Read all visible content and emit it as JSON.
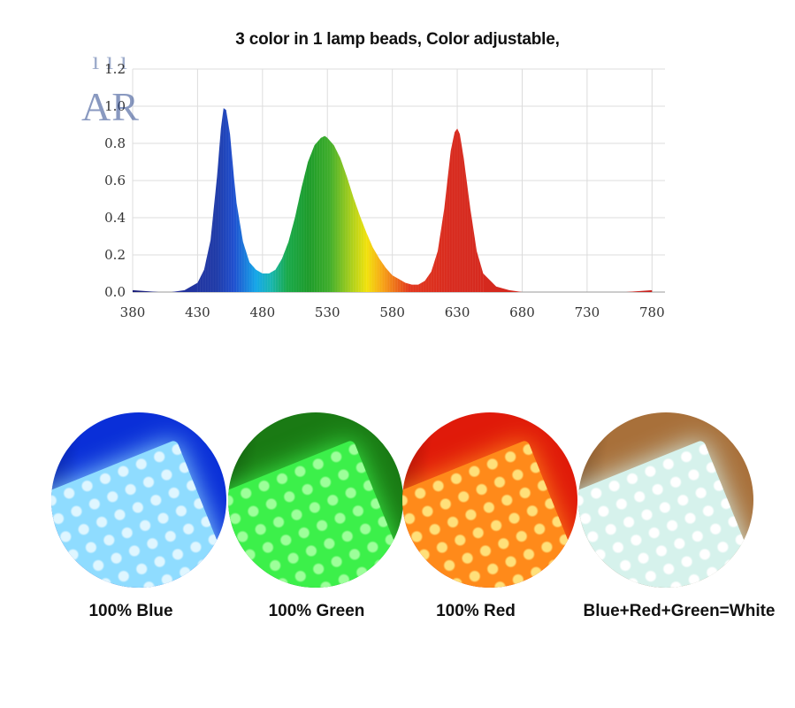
{
  "chart_data": {
    "type": "area",
    "title": "3 color in 1 lamp beads, Color adjustable,",
    "xlabel": "",
    "ylabel": "",
    "xlim": [
      380,
      790
    ],
    "ylim": [
      0,
      1.2
    ],
    "x_ticks": [
      "380",
      "430",
      "480",
      "530",
      "580",
      "630",
      "680",
      "730",
      "780"
    ],
    "y_ticks": [
      "0.0",
      "0.2",
      "0.4",
      "0.6",
      "0.8",
      "1.0",
      "1.2"
    ],
    "grid": true,
    "series": [
      {
        "x": [
          380,
          400,
          410,
          420,
          430,
          435,
          440,
          445,
          448,
          450,
          452,
          455,
          458,
          460,
          465,
          470,
          475,
          480,
          485,
          490,
          495,
          500,
          505,
          510,
          515,
          520,
          525,
          528,
          530,
          535,
          540,
          545,
          550,
          555,
          560,
          565,
          570,
          575,
          580,
          585,
          590,
          595,
          600,
          605,
          610,
          615,
          620,
          625,
          628,
          630,
          632,
          635,
          640,
          645,
          650,
          660,
          670,
          680,
          700,
          720,
          740,
          760,
          780
        ],
        "y": [
          0.01,
          0.0,
          0.0,
          0.01,
          0.05,
          0.12,
          0.28,
          0.62,
          0.88,
          0.99,
          0.98,
          0.85,
          0.62,
          0.48,
          0.27,
          0.16,
          0.12,
          0.1,
          0.1,
          0.12,
          0.18,
          0.27,
          0.4,
          0.56,
          0.7,
          0.79,
          0.83,
          0.84,
          0.83,
          0.79,
          0.72,
          0.62,
          0.51,
          0.41,
          0.32,
          0.24,
          0.18,
          0.13,
          0.09,
          0.07,
          0.05,
          0.04,
          0.04,
          0.06,
          0.11,
          0.22,
          0.45,
          0.76,
          0.86,
          0.88,
          0.85,
          0.72,
          0.45,
          0.22,
          0.1,
          0.03,
          0.01,
          0.0,
          0.0,
          0.0,
          0.0,
          0.0,
          0.01
        ]
      }
    ]
  },
  "samples": [
    {
      "label": "100% Blue",
      "base": "#0a2fd8",
      "glow": "#8fdcff",
      "bead": "#dff6ff"
    },
    {
      "label": "100% Green",
      "base": "#1a7a14",
      "glow": "#3cf04a",
      "bead": "#9dff9a"
    },
    {
      "label": "100% Red",
      "base": "#e01a0a",
      "glow": "#ff8a1a",
      "bead": "#ffe07a"
    },
    {
      "label": "Blue+Red+Green=White",
      "base": "#a8703a",
      "glow": "#d6f2ec",
      "bead": "#ffffff"
    }
  ]
}
